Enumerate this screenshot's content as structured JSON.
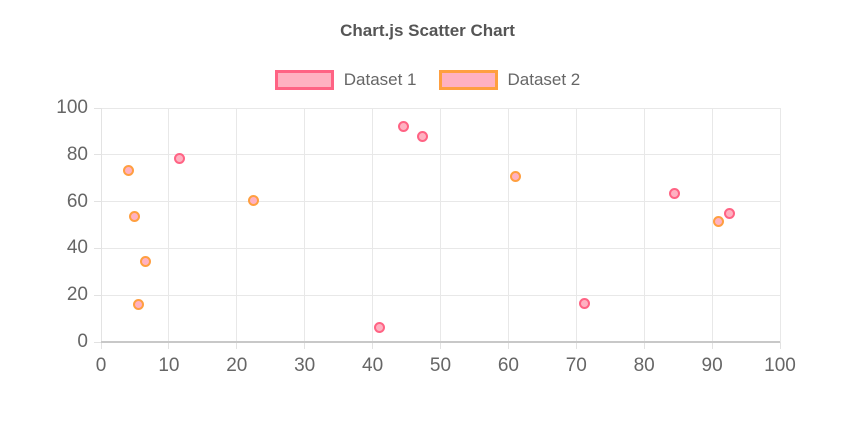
{
  "chart_data": {
    "type": "scatter",
    "title": "Chart.js Scatter Chart",
    "xlabel": "",
    "ylabel": "",
    "xlim": [
      0,
      100
    ],
    "ylim": [
      0,
      100
    ],
    "x_ticks": [
      0,
      10,
      20,
      30,
      40,
      50,
      60,
      70,
      80,
      90,
      100
    ],
    "y_ticks": [
      0,
      20,
      40,
      60,
      80,
      100
    ],
    "grid": true,
    "legend_position": "top",
    "series": [
      {
        "name": "Dataset 1",
        "border_color": "#FF6384",
        "fill_color": "#FFB1C1",
        "points": [
          {
            "x": 11.5,
            "y": 78.5
          },
          {
            "x": 44.5,
            "y": 92.3
          },
          {
            "x": 47.3,
            "y": 88.0
          },
          {
            "x": 41.0,
            "y": 6.0
          },
          {
            "x": 71.2,
            "y": 16.5
          },
          {
            "x": 84.5,
            "y": 63.3
          },
          {
            "x": 92.5,
            "y": 55.0
          }
        ]
      },
      {
        "name": "Dataset 2",
        "border_color": "#FF9F40",
        "fill_color": "#FFB1C1",
        "points": [
          {
            "x": 4.0,
            "y": 73.5
          },
          {
            "x": 5.0,
            "y": 53.5
          },
          {
            "x": 6.5,
            "y": 34.5
          },
          {
            "x": 5.5,
            "y": 16.0
          },
          {
            "x": 22.5,
            "y": 60.5
          },
          {
            "x": 61.0,
            "y": 70.8
          },
          {
            "x": 91.0,
            "y": 51.5
          }
        ]
      }
    ]
  },
  "colors": {
    "grid": "#E8E8E8",
    "axis_border": "#C8C8C8",
    "tick_text": "#666666",
    "title_text": "#555555"
  }
}
